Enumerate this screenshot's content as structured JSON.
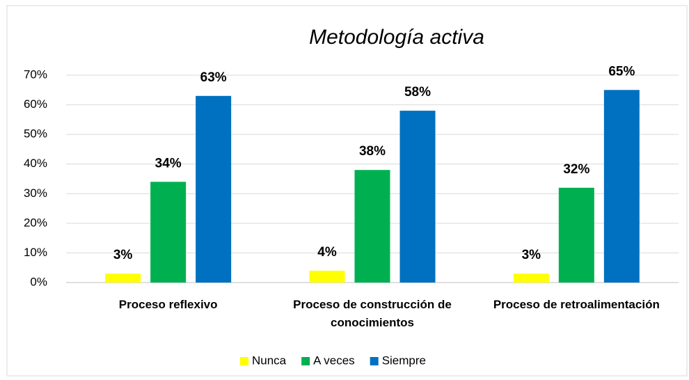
{
  "chart_data": {
    "type": "bar",
    "title": "Metodología activa",
    "categories": [
      "Proceso reflexivo",
      "Proceso de construcción de conocimientos",
      "Proceso de retroalimentación"
    ],
    "series": [
      {
        "name": "Nunca",
        "color": "#FFFF00",
        "values": [
          3,
          4,
          3
        ],
        "value_labels": [
          "3%",
          "4%",
          "3%"
        ]
      },
      {
        "name": "A veces",
        "color": "#00B050",
        "values": [
          34,
          38,
          32
        ],
        "value_labels": [
          "34%",
          "38%",
          "32%"
        ]
      },
      {
        "name": "Siempre",
        "color": "#0070C0",
        "values": [
          63,
          58,
          65
        ],
        "value_labels": [
          "63%",
          "58%",
          "65%"
        ]
      }
    ],
    "ylim": [
      0,
      70
    ],
    "yticks": [
      {
        "value": 0,
        "label": "0%"
      },
      {
        "value": 10,
        "label": "10%"
      },
      {
        "value": 20,
        "label": "20%"
      },
      {
        "value": 30,
        "label": "30%"
      },
      {
        "value": 40,
        "label": "40%"
      },
      {
        "value": 50,
        "label": "50%"
      },
      {
        "value": 60,
        "label": "60%"
      },
      {
        "value": 70,
        "label": "70%"
      }
    ],
    "grid": true,
    "legend": "bottom"
  }
}
